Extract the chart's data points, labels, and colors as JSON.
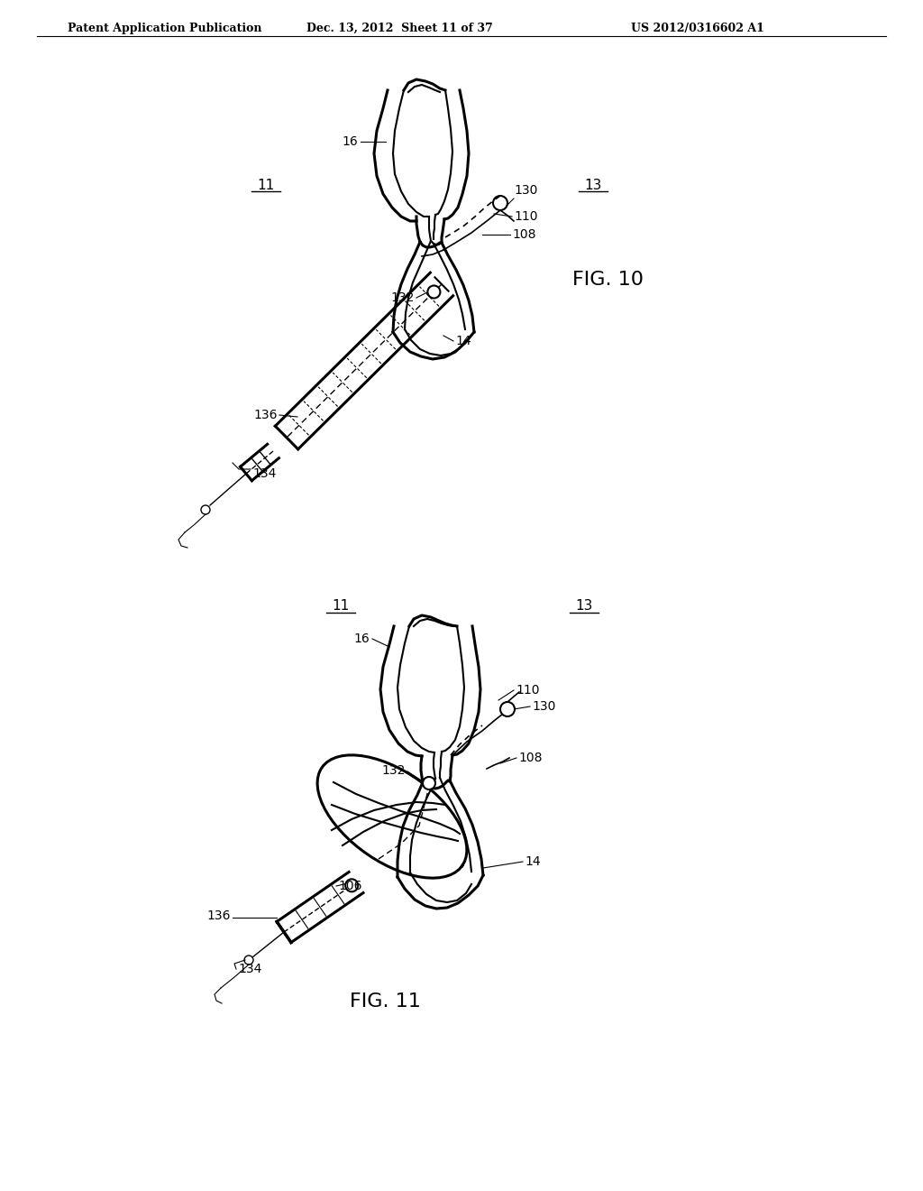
{
  "background_color": "#ffffff",
  "line_color": "#000000",
  "header_text": "Patent Application Publication",
  "header_date": "Dec. 13, 2012  Sheet 11 of 37",
  "header_patent": "US 2012/0316602 A1",
  "fig10_label": "FIG. 10",
  "fig11_label": "FIG. 11"
}
